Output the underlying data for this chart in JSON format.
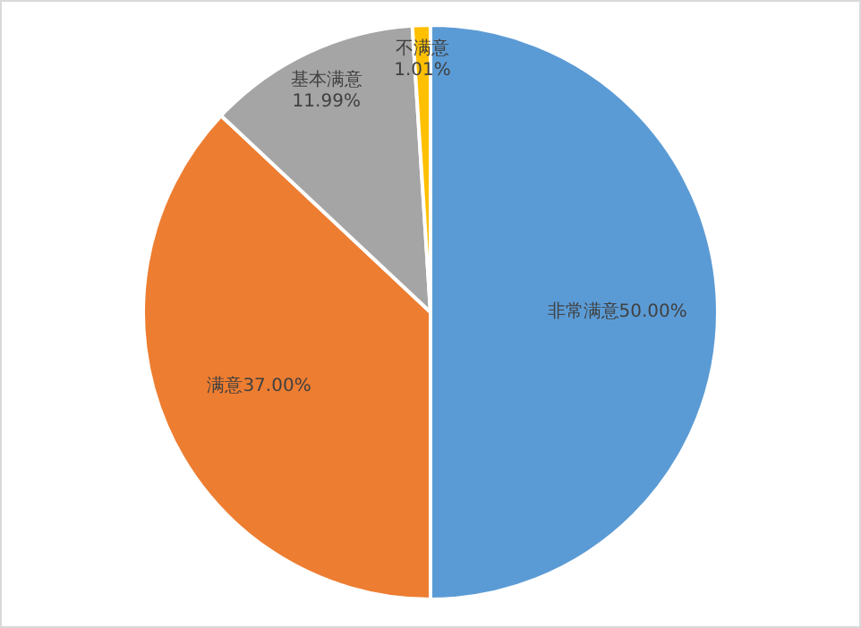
{
  "chart_data": {
    "type": "pie",
    "categories": [
      "非常满意",
      "满意",
      "基本满意",
      "不满意"
    ],
    "values": [
      50.0,
      37.0,
      11.99,
      1.01
    ],
    "colors": [
      "#5b9bd5",
      "#ed7d31",
      "#a5a5a5",
      "#ffc000"
    ],
    "value_labels": [
      "50.00%",
      "37.00%",
      "11.99%",
      "1.01%"
    ]
  }
}
